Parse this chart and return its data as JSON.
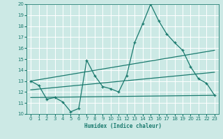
{
  "xlabel": "Humidex (Indice chaleur)",
  "xlim": [
    -0.5,
    23.5
  ],
  "ylim": [
    10,
    20
  ],
  "yticks": [
    10,
    11,
    12,
    13,
    14,
    15,
    16,
    17,
    18,
    19,
    20
  ],
  "xticks": [
    0,
    1,
    2,
    3,
    4,
    5,
    6,
    7,
    8,
    9,
    10,
    11,
    12,
    13,
    14,
    15,
    16,
    17,
    18,
    19,
    20,
    21,
    22,
    23
  ],
  "background_color": "#cce9e5",
  "grid_color": "#ffffff",
  "line_color": "#1a7a6e",
  "line1_x": [
    0,
    1,
    2,
    3,
    4,
    5,
    6,
    7,
    8,
    9,
    10,
    11,
    12,
    13,
    14,
    15,
    16,
    17,
    18,
    19,
    20,
    21,
    22,
    23
  ],
  "line1_y": [
    13.0,
    12.6,
    11.35,
    11.5,
    11.1,
    10.2,
    10.5,
    14.9,
    13.5,
    12.5,
    12.3,
    12.0,
    13.5,
    16.5,
    18.2,
    20.0,
    18.5,
    17.3,
    16.5,
    15.8,
    14.3,
    13.2,
    12.8,
    11.7
  ],
  "line2_x": [
    0,
    23
  ],
  "line2_y": [
    11.5,
    11.7
  ],
  "line3_x": [
    0,
    23
  ],
  "line3_y": [
    12.2,
    13.8
  ],
  "line4_x": [
    0,
    23
  ],
  "line4_y": [
    13.0,
    15.8
  ]
}
